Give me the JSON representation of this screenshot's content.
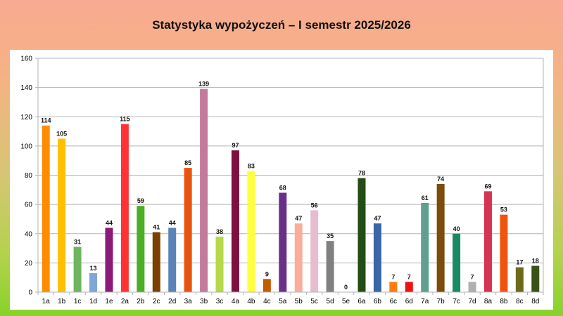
{
  "chart_data": {
    "type": "bar",
    "title": "Statystyka wypożyczeń – I semestr 2025/2026",
    "xlabel": "",
    "ylabel": "",
    "ylim": [
      0,
      160
    ],
    "yticks": [
      0,
      20,
      40,
      60,
      80,
      100,
      120,
      140,
      160
    ],
    "grid": true,
    "legend": "none",
    "categories": [
      "1a",
      "1b",
      "1c",
      "1d",
      "1e",
      "2a",
      "2b",
      "2c",
      "2d",
      "3a",
      "3b",
      "3c",
      "4a",
      "4b",
      "4c",
      "5a",
      "5b",
      "5c",
      "5d",
      "5e",
      "6a",
      "6b",
      "6c",
      "6d",
      "7a",
      "7b",
      "7c",
      "7d",
      "8a",
      "8b",
      "8c",
      "8d"
    ],
    "values": [
      114,
      105,
      31,
      13,
      44,
      115,
      59,
      41,
      44,
      85,
      139,
      38,
      97,
      83,
      9,
      68,
      47,
      56,
      35,
      0,
      78,
      47,
      7,
      7,
      61,
      74,
      40,
      7,
      69,
      53,
      17,
      18
    ],
    "colors": [
      "#ff8c00",
      "#ffc000",
      "#6fb55e",
      "#7ea7d8",
      "#8b1a78",
      "#ff3333",
      "#4cae25",
      "#7b3f00",
      "#5a84b8",
      "#e85410",
      "#c47a9a",
      "#b5d94a",
      "#7d1040",
      "#ffff40",
      "#c45a00",
      "#6a2f8a",
      "#f9ad9a",
      "#e6bdd0",
      "#808080",
      "#f2e08f",
      "#234d14",
      "#3a65a8",
      "#ff7d10",
      "#ee1111",
      "#5f9f90",
      "#7b4c0c",
      "#1a8a65",
      "#b0b0b0",
      "#d63454",
      "#f05510",
      "#6b6b1a",
      "#3a5218"
    ]
  }
}
